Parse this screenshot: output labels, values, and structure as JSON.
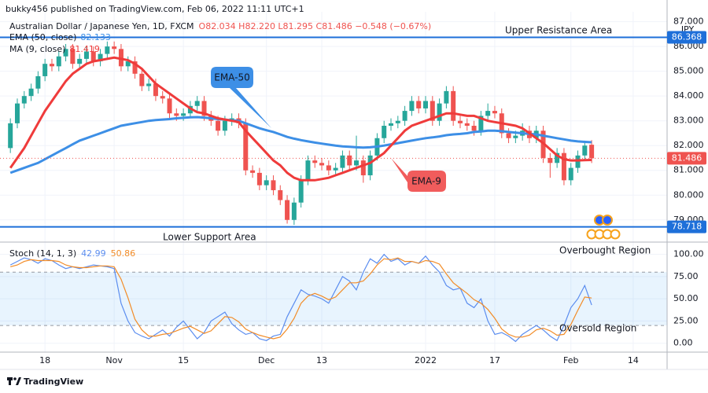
{
  "header": "bukky456 published on TradingView.com, Feb 06, 2022 11:11 UTC+1",
  "footer": "TradingView",
  "chart_data": [
    {
      "type": "candlestick",
      "symbol": "Australian Dollar / Japanese Yen, 1D, FXCM",
      "ohlc_label": "O82.034 H82.220 L81.295 C81.486 −0.548 (−0.67%)",
      "currency": "JPY",
      "up_color": "#26a69a",
      "down_color": "#ef5350",
      "open": [
        81.9,
        82.9,
        83.7,
        84.0,
        84.3,
        84.8,
        85.3,
        85.2,
        85.6,
        85.9,
        85.3,
        85.5,
        85.8,
        85.4,
        85.7,
        86.0,
        85.9,
        85.2,
        85.4,
        84.9,
        84.4,
        84.5,
        84.0,
        83.9,
        83.3,
        83.2,
        83.3,
        83.6,
        83.8,
        83.2,
        83.0,
        82.6,
        83.0,
        83.1,
        82.9,
        81.0,
        80.9,
        80.4,
        80.6,
        80.2,
        79.8,
        79.0,
        79.7,
        80.6,
        81.4,
        81.3,
        81.2,
        81.0,
        81.1,
        81.6,
        81.2,
        81.4,
        80.8,
        81.6,
        82.3,
        82.8,
        82.9,
        83.0,
        83.4,
        83.8,
        83.5,
        83.8,
        83.0,
        83.7,
        84.2,
        83.0,
        82.9,
        82.8,
        82.6,
        83.2,
        83.4,
        83.3,
        82.5,
        82.3,
        82.4,
        82.6,
        82.3,
        82.6,
        81.5,
        81.3,
        81.7,
        80.6,
        81.1,
        81.6,
        82.034
      ],
      "high": [
        83.1,
        83.9,
        84.2,
        84.5,
        85.0,
        85.5,
        85.5,
        85.8,
        86.1,
        86.1,
        85.7,
        86.0,
        86.0,
        85.9,
        86.2,
        86.2,
        86.1,
        85.6,
        85.6,
        85.1,
        84.7,
        84.7,
        84.2,
        84.1,
        83.5,
        83.5,
        83.8,
        84.0,
        84.0,
        83.4,
        83.2,
        83.2,
        83.3,
        83.3,
        83.1,
        81.2,
        81.1,
        80.8,
        80.8,
        80.4,
        80.0,
        79.9,
        80.8,
        81.6,
        81.6,
        81.5,
        81.4,
        81.3,
        81.8,
        81.8,
        82.4,
        81.6,
        81.8,
        82.5,
        83.0,
        83.1,
        83.2,
        83.6,
        84.0,
        84.0,
        84.0,
        84.0,
        83.9,
        84.4,
        84.4,
        83.2,
        83.1,
        83.0,
        83.4,
        83.7,
        83.6,
        83.5,
        82.7,
        82.6,
        82.9,
        82.8,
        82.8,
        82.8,
        81.7,
        81.9,
        81.9,
        81.3,
        81.8,
        82.2,
        82.22
      ],
      "low": [
        81.7,
        82.7,
        83.5,
        83.8,
        84.1,
        84.6,
        85.0,
        85.0,
        85.4,
        85.1,
        85.1,
        85.3,
        85.2,
        85.2,
        85.5,
        85.7,
        85.0,
        85.0,
        84.7,
        84.2,
        84.2,
        83.8,
        83.7,
        83.1,
        83.0,
        83.0,
        83.1,
        83.4,
        83.0,
        82.8,
        82.4,
        82.4,
        82.8,
        82.7,
        80.8,
        80.7,
        80.2,
        80.2,
        80.0,
        79.6,
        78.85,
        78.8,
        79.5,
        80.4,
        81.1,
        81.0,
        80.8,
        80.8,
        80.9,
        81.0,
        81.0,
        80.5,
        80.6,
        81.4,
        82.1,
        82.6,
        82.7,
        82.8,
        83.2,
        83.3,
        83.3,
        82.8,
        82.8,
        83.5,
        82.8,
        82.7,
        82.6,
        82.4,
        82.4,
        83.0,
        83.1,
        82.3,
        82.1,
        82.1,
        82.2,
        82.1,
        82.1,
        81.3,
        80.7,
        81.1,
        80.4,
        80.4,
        80.9,
        81.4,
        81.295
      ],
      "close": [
        82.9,
        83.7,
        84.0,
        84.3,
        84.8,
        85.3,
        85.2,
        85.6,
        85.9,
        85.3,
        85.5,
        85.8,
        85.4,
        85.7,
        86.0,
        85.9,
        85.2,
        85.4,
        84.9,
        84.4,
        84.5,
        84.0,
        83.9,
        83.3,
        83.2,
        83.3,
        83.6,
        83.8,
        83.2,
        83.0,
        82.6,
        83.0,
        83.1,
        82.9,
        81.0,
        80.9,
        80.4,
        80.6,
        80.2,
        79.8,
        79.0,
        79.7,
        80.6,
        81.4,
        81.3,
        81.2,
        81.0,
        81.1,
        81.6,
        81.2,
        81.4,
        80.8,
        81.6,
        82.3,
        82.8,
        82.9,
        83.0,
        83.4,
        83.8,
        83.5,
        83.8,
        83.0,
        83.7,
        84.2,
        83.0,
        82.9,
        82.8,
        82.6,
        83.2,
        83.4,
        83.3,
        82.5,
        82.3,
        82.4,
        82.6,
        82.3,
        82.6,
        81.5,
        81.3,
        81.7,
        80.6,
        81.1,
        81.6,
        82.0,
        81.486
      ],
      "series": [
        {
          "name": "EMA (50, close)",
          "color": "#3d8fe6",
          "values": [
            80.9,
            81.0,
            81.1,
            81.2,
            81.3,
            81.45,
            81.6,
            81.75,
            81.9,
            82.05,
            82.2,
            82.3,
            82.4,
            82.5,
            82.6,
            82.7,
            82.8,
            82.85,
            82.9,
            82.95,
            83.0,
            83.03,
            83.05,
            83.07,
            83.1,
            83.12,
            83.14,
            83.15,
            83.13,
            83.1,
            83.07,
            83.05,
            83.02,
            83.0,
            82.9,
            82.8,
            82.7,
            82.62,
            82.55,
            82.45,
            82.35,
            82.28,
            82.22,
            82.17,
            82.12,
            82.08,
            82.04,
            82.0,
            81.97,
            81.95,
            81.93,
            81.92,
            81.93,
            81.96,
            82.0,
            82.05,
            82.1,
            82.15,
            82.2,
            82.25,
            82.3,
            82.33,
            82.37,
            82.42,
            82.45,
            82.47,
            82.5,
            82.55,
            82.57,
            82.6,
            82.6,
            82.58,
            82.55,
            82.52,
            82.5,
            82.47,
            82.45,
            82.4,
            82.35,
            82.3,
            82.25,
            82.2,
            82.17,
            82.15,
            82.133
          ]
        },
        {
          "name": "MA (9, close)",
          "color": "#ef3b3b",
          "values": [
            81.1,
            81.5,
            81.9,
            82.4,
            82.9,
            83.4,
            83.8,
            84.2,
            84.6,
            84.9,
            85.1,
            85.3,
            85.4,
            85.45,
            85.5,
            85.55,
            85.5,
            85.45,
            85.3,
            85.1,
            84.8,
            84.5,
            84.3,
            84.1,
            83.9,
            83.7,
            83.5,
            83.35,
            83.3,
            83.2,
            83.1,
            83.05,
            83.0,
            82.95,
            82.6,
            82.3,
            82.0,
            81.7,
            81.4,
            81.2,
            80.9,
            80.7,
            80.6,
            80.6,
            80.6,
            80.65,
            80.7,
            80.8,
            80.9,
            81.0,
            81.1,
            81.2,
            81.3,
            81.5,
            81.7,
            82.0,
            82.3,
            82.6,
            82.8,
            82.9,
            83.0,
            83.1,
            83.2,
            83.3,
            83.3,
            83.25,
            83.2,
            83.2,
            83.1,
            83.0,
            82.95,
            82.9,
            82.85,
            82.8,
            82.7,
            82.5,
            82.3,
            82.1,
            81.85,
            81.6,
            81.45,
            81.4,
            81.4,
            81.41,
            81.419
          ]
        }
      ],
      "levels": [
        {
          "value": 86.368,
          "color": "#1e6fd9",
          "style": "solid"
        },
        {
          "value": 81.486,
          "color": "#ef5350",
          "style": "dotted"
        },
        {
          "value": 78.718,
          "color": "#1e6fd9",
          "style": "solid"
        }
      ],
      "annotations": [
        "Upper Resistance Area",
        "Lower Support Area",
        "EMA-50",
        "EMA-9"
      ],
      "ylim": [
        78.2,
        87.4
      ],
      "yticks": [
        {
          "value": 79,
          "label": "79.000"
        },
        {
          "value": 80,
          "label": "80.000"
        },
        {
          "value": 81,
          "label": "81.000"
        },
        {
          "value": 82,
          "label": "82.000"
        },
        {
          "value": 83,
          "label": "83.000"
        },
        {
          "value": 84,
          "label": "84.000"
        },
        {
          "value": 85,
          "label": "85.000"
        },
        {
          "value": 86,
          "label": "86.000"
        },
        {
          "value": 87,
          "label": "87.000"
        }
      ],
      "xlim": [
        -1.5,
        94.9
      ],
      "xticks": [
        {
          "value": 5,
          "label": "18"
        },
        {
          "value": 15,
          "label": "Nov"
        },
        {
          "value": 25,
          "label": "15"
        },
        {
          "value": 37,
          "label": "Dec"
        },
        {
          "value": 45,
          "label": "13"
        },
        {
          "value": 60,
          "label": "2022"
        },
        {
          "value": 70,
          "label": "17"
        },
        {
          "value": 81,
          "label": "Feb"
        },
        {
          "value": 90,
          "label": "14"
        }
      ],
      "grid": true
    },
    {
      "type": "line",
      "legend_title": "Stoch (14, 1, 3)",
      "series": [
        {
          "color": "#5b8def",
          "values": [
            88,
            92,
            96,
            94,
            90,
            95,
            93,
            88,
            84,
            86,
            84,
            86,
            88,
            87,
            86,
            84,
            45,
            25,
            12,
            8,
            5,
            10,
            15,
            8,
            18,
            25,
            15,
            5,
            12,
            25,
            30,
            35,
            22,
            15,
            10,
            12,
            5,
            3,
            8,
            10,
            30,
            45,
            60,
            55,
            53,
            50,
            45,
            60,
            75,
            70,
            60,
            80,
            95,
            90,
            100,
            92,
            95,
            88,
            92,
            90,
            98,
            88,
            80,
            65,
            60,
            62,
            45,
            40,
            50,
            25,
            10,
            12,
            8,
            2,
            10,
            15,
            20,
            15,
            8,
            3,
            20,
            40,
            50,
            65,
            42.99
          ]
        },
        {
          "color": "#f28c28",
          "values": [
            86,
            88,
            92,
            94,
            93,
            93,
            93,
            92,
            88,
            86,
            85,
            85,
            86,
            87,
            87,
            86,
            72,
            51,
            27,
            15,
            8,
            8,
            10,
            11,
            14,
            17,
            19,
            15,
            11,
            14,
            22,
            30,
            29,
            24,
            16,
            12,
            9,
            7,
            5,
            7,
            16,
            28,
            45,
            53,
            56,
            53,
            49,
            52,
            60,
            68,
            68,
            70,
            78,
            88,
            95,
            94,
            96,
            92,
            92,
            90,
            93,
            92,
            89,
            78,
            68,
            62,
            56,
            49,
            45,
            38,
            28,
            16,
            10,
            7,
            7,
            9,
            15,
            17,
            14,
            9,
            10,
            21,
            37,
            52,
            50.86
          ]
        }
      ],
      "bands": [
        20,
        80
      ],
      "annotations": [
        "Overbought Region",
        "Oversold Region"
      ],
      "ylim": [
        -10,
        112
      ],
      "yticks": [
        {
          "value": 0,
          "label": "0.00"
        },
        {
          "value": 25,
          "label": "25.00"
        },
        {
          "value": 50,
          "label": "50.00"
        },
        {
          "value": 75,
          "label": "75.00"
        },
        {
          "value": 100,
          "label": "100.00"
        }
      ],
      "grid": true
    }
  ]
}
